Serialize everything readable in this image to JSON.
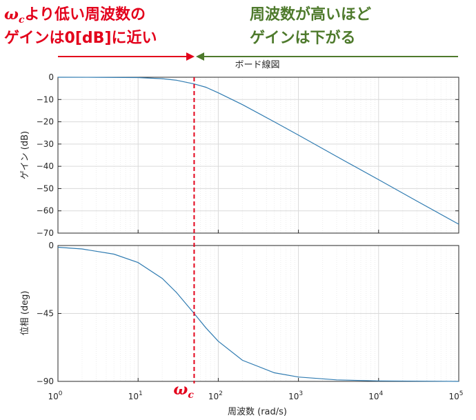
{
  "annotations": {
    "left_line1_symbol": "ω",
    "left_line1_sub": "c",
    "left_line1_rest": "より低い周波数の",
    "left_line2": "ゲインは0[dB]に近い",
    "right_line1": "周波数が高いほど",
    "right_line2": "ゲインは下がる",
    "wc_symbol": "ω",
    "wc_sub": "c",
    "left_color": "#e3001b",
    "right_color": "#4e7a2c"
  },
  "chart_data": [
    {
      "type": "line",
      "title": "ボード線図",
      "ylabel": "ゲイン (dB)",
      "xscale": "log",
      "xlim": [
        1,
        100000
      ],
      "ylim": [
        -70,
        0
      ],
      "yticks": [
        0,
        -10,
        -20,
        -30,
        -40,
        -50,
        -60,
        -70
      ],
      "yticklabels": [
        "0",
        "−10",
        "−20",
        "−30",
        "−40",
        "−50",
        "−60",
        "−70"
      ],
      "grid": true,
      "series": [
        {
          "x": [
            1,
            3,
            10,
            20,
            30,
            50,
            70,
            100,
            200,
            500,
            1000,
            3000,
            10000,
            30000,
            100000
          ],
          "values": [
            -0.002,
            -0.016,
            -0.17,
            -0.65,
            -1.33,
            -3.01,
            -4.48,
            -6.99,
            -12.3,
            -20.0,
            -26.0,
            -35.6,
            -46.0,
            -55.6,
            -66.0
          ]
        }
      ],
      "color": "#2f7bb1"
    },
    {
      "type": "line",
      "ylabel": "位相 (deg)",
      "xlabel": "周波数 (rad/s)",
      "xscale": "log",
      "xlim": [
        1,
        100000
      ],
      "ylim": [
        -90,
        0
      ],
      "yticks": [
        0,
        -45,
        -90
      ],
      "yticklabels": [
        "0",
        "−45",
        "−90"
      ],
      "xticks": [
        1,
        10,
        100,
        1000,
        10000,
        100000
      ],
      "xtick_base": "10",
      "xtick_exps": [
        "0",
        "1",
        "2",
        "3",
        "4",
        "5"
      ],
      "grid": true,
      "series": [
        {
          "x": [
            1,
            2,
            5,
            10,
            20,
            30,
            50,
            70,
            100,
            200,
            500,
            1000,
            3000,
            10000,
            100000
          ],
          "values": [
            -1.15,
            -2.29,
            -5.71,
            -11.3,
            -21.8,
            -31.0,
            -45.0,
            -54.5,
            -63.4,
            -76.0,
            -84.3,
            -87.1,
            -89.0,
            -89.7,
            -90.0
          ]
        }
      ],
      "color": "#2f7bb1"
    }
  ],
  "cutoff": {
    "x": 50,
    "color": "#e3001b"
  }
}
